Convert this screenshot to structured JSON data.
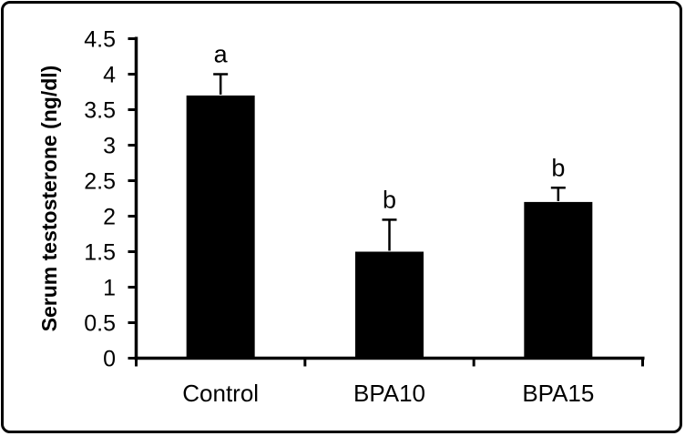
{
  "figure": {
    "background": "#ffffff",
    "frame_color": "#000000"
  },
  "chart_data": {
    "type": "bar",
    "title": "",
    "categories": [
      "Control",
      "BPA10",
      "BPA15"
    ],
    "values": [
      3.7,
      1.5,
      2.2
    ],
    "errors_plus": [
      0.3,
      0.45,
      0.2
    ],
    "bar_labels": [
      "a",
      "b",
      "b"
    ],
    "xlabel": "",
    "ylabel": "Serum testosterone (ng/dl)",
    "ylim": [
      0,
      4.5
    ],
    "ytick_step": 0.5,
    "yticks": [
      0,
      0.5,
      1,
      1.5,
      2,
      2.5,
      3,
      3.5,
      4,
      4.5
    ],
    "ytick_labels": [
      "0",
      "0.5",
      "1",
      "1.5",
      "2",
      "2.5",
      "3",
      "3.5",
      "4",
      "4.5"
    ],
    "grid": false,
    "legend": false,
    "bar_color": "#000000",
    "axis_color": "#000000",
    "error_bar_color": "#000000",
    "text_color": "#000000"
  }
}
